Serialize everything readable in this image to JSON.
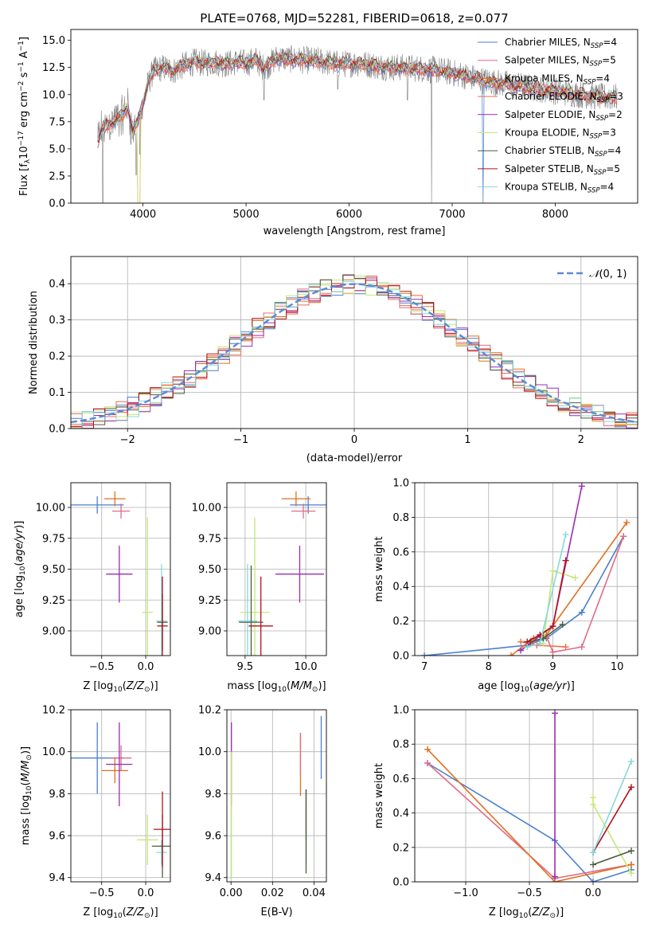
{
  "colors": {
    "Chabrier MILES": "#4a7fd0",
    "Salpeter MILES": "#e06b86",
    "Kroupa MILES": "#e07020",
    "Chabrier ELODIE": "#ed6f4a",
    "Salpeter ELODIE": "#9a2cb3",
    "Kroupa ELODIE": "#c8e67a",
    "Chabrier STELIB": "#4a5d3e",
    "Salpeter STELIB": "#b11218",
    "Kroupa STELIB": "#86d8dc"
  },
  "chart_data": [
    {
      "id": "spectrum",
      "type": "line",
      "title": "PLATE=0768, MJD=52281, FIBERID=0618, z=0.077",
      "xlabel": "wavelength [Angstrom, rest frame]",
      "ylabel": "Flux [fλ10⁻¹⁷ erg cm⁻² s⁻¹ A⁻¹]",
      "xlim": [
        3300,
        8800
      ],
      "ylim": [
        0,
        16
      ],
      "xticks": [
        4000,
        5000,
        6000,
        7000,
        8000
      ],
      "yticks": [
        0.0,
        2.5,
        5.0,
        7.5,
        10.0,
        12.5,
        15.0
      ],
      "data_color": "#808080",
      "continuum": [
        [
          3550,
          5.5
        ],
        [
          3600,
          6.8
        ],
        [
          3700,
          7.5
        ],
        [
          3800,
          8.0
        ],
        [
          3850,
          9.0
        ],
        [
          3900,
          6.5
        ],
        [
          3950,
          7.5
        ],
        [
          4000,
          9.2
        ],
        [
          4050,
          11.0
        ],
        [
          4100,
          12.2
        ],
        [
          4200,
          12.5
        ],
        [
          4300,
          12.2
        ],
        [
          4400,
          12.7
        ],
        [
          4500,
          13.0
        ],
        [
          4600,
          12.9
        ],
        [
          4700,
          13.0
        ],
        [
          4800,
          12.8
        ],
        [
          4900,
          13.0
        ],
        [
          5000,
          12.9
        ],
        [
          5100,
          13.2
        ],
        [
          5175,
          12.4
        ],
        [
          5300,
          13.4
        ],
        [
          5500,
          13.2
        ],
        [
          5700,
          13.1
        ],
        [
          5900,
          12.8
        ],
        [
          6100,
          12.9
        ],
        [
          6300,
          12.6
        ],
        [
          6500,
          12.5
        ],
        [
          6700,
          12.4
        ],
        [
          6900,
          12.2
        ],
        [
          7100,
          11.8
        ],
        [
          7300,
          11.3
        ],
        [
          7500,
          11.0
        ],
        [
          7800,
          10.6
        ],
        [
          8100,
          10.2
        ],
        [
          8400,
          9.8
        ],
        [
          8600,
          9.7
        ]
      ],
      "legend": [
        {
          "key": "Chabrier MILES",
          "text": "Chabrier MILES, N",
          "sub": "SSP",
          "suffix": "=4"
        },
        {
          "key": "Salpeter MILES",
          "text": "Salpeter MILES, N",
          "sub": "SSP",
          "suffix": "=5"
        },
        {
          "key": "Kroupa MILES",
          "text": "Kroupa MILES, N",
          "sub": "SSP",
          "suffix": "=4"
        },
        {
          "key": "Chabrier ELODIE",
          "text": "Chabrier ELODIE, N",
          "sub": "SSP",
          "suffix": "=3"
        },
        {
          "key": "Salpeter ELODIE",
          "text": "Salpeter ELODIE, N",
          "sub": "SSP",
          "suffix": "=2"
        },
        {
          "key": "Kroupa ELODIE",
          "text": "Kroupa ELODIE, N",
          "sub": "SSP",
          "suffix": "=3"
        },
        {
          "key": "Chabrier STELIB",
          "text": "Chabrier STELIB, N",
          "sub": "SSP",
          "suffix": "=4"
        },
        {
          "key": "Salpeter STELIB",
          "text": "Salpeter STELIB, N",
          "sub": "SSP",
          "suffix": "=5"
        },
        {
          "key": "Kroupa STELIB",
          "text": "Kroupa STELIB, N",
          "sub": "SSP",
          "suffix": "=4"
        }
      ]
    },
    {
      "id": "residuals",
      "type": "line",
      "xlabel": "(data-model)/error",
      "ylabel": "Normed distribution",
      "xlim": [
        -2.5,
        2.5
      ],
      "ylim": [
        0,
        0.475
      ],
      "xticks": [
        -2,
        -1,
        0,
        1,
        2
      ],
      "yticks": [
        0.0,
        0.1,
        0.2,
        0.3,
        0.4
      ],
      "grid": true,
      "legend_label": "N(0,1)",
      "gaussian_color": "#5b8bd6"
    },
    {
      "id": "age-vs-Z",
      "type": "scatter",
      "xlabel": "Z [log10(Z/Z⊙)]",
      "ylabel": "age [log10(age/yr)]",
      "xlim": [
        -0.85,
        0.28
      ],
      "ylim": [
        8.8,
        10.2
      ],
      "xticks": [
        -0.5,
        0.0
      ],
      "xticklabels": [
        "−0.5",
        "0.0"
      ],
      "yticks": [
        9.0,
        9.25,
        9.5,
        9.75,
        10.0
      ],
      "yticklabels": [
        "9.00",
        "9.25",
        "9.50",
        "9.75",
        "10.00"
      ],
      "points": [
        {
          "key": "Chabrier MILES",
          "x": -0.55,
          "y": 10.02,
          "xerr": 0.3,
          "yerr": 0.07
        },
        {
          "key": "Kroupa MILES",
          "x": -0.35,
          "y": 10.07,
          "xerr": 0.12,
          "yerr": 0.06
        },
        {
          "key": "Salpeter MILES",
          "x": -0.28,
          "y": 9.97,
          "xerr": 0.1,
          "yerr": 0.06
        },
        {
          "key": "Salpeter ELODIE",
          "x": -0.3,
          "y": 9.46,
          "xerr": 0.15,
          "yerr": 0.23
        },
        {
          "key": "Kroupa ELODIE",
          "x": 0.02,
          "y": 9.15,
          "xerr": 0.06,
          "yerr": 0.77
        },
        {
          "key": "Kroupa STELIB",
          "x": 0.18,
          "y": 9.08,
          "xerr": 0.06,
          "yerr": 0.46
        },
        {
          "key": "Chabrier STELIB",
          "x": 0.19,
          "y": 9.07,
          "xerr": 0.06,
          "yerr": 0.23
        },
        {
          "key": "Salpeter STELIB",
          "x": 0.19,
          "y": 9.04,
          "xerr": 0.06,
          "yerr": 0.4
        }
      ]
    },
    {
      "id": "age-vs-mass",
      "type": "scatter",
      "xlabel": "mass [log10(M/M⊙)]",
      "xlim": [
        9.35,
        10.17
      ],
      "ylim": [
        8.8,
        10.2
      ],
      "xticks": [
        9.5,
        10.0
      ],
      "xticklabels": [
        "9.5",
        "10.0"
      ],
      "yticks": [
        9.0,
        9.25,
        9.5,
        9.75,
        10.0
      ],
      "yticklabels": [
        "9.00",
        "9.25",
        "9.50",
        "9.75",
        "10.00"
      ],
      "points": [
        {
          "key": "Chabrier MILES",
          "x": 10.02,
          "y": 10.02,
          "xerr": 0.15,
          "yerr": 0.07
        },
        {
          "key": "Kroupa MILES",
          "x": 9.92,
          "y": 10.07,
          "xerr": 0.12,
          "yerr": 0.06
        },
        {
          "key": "Salpeter MILES",
          "x": 9.98,
          "y": 9.97,
          "xerr": 0.1,
          "yerr": 0.06
        },
        {
          "key": "Salpeter ELODIE",
          "x": 9.95,
          "y": 9.46,
          "xerr": 0.2,
          "yerr": 0.23
        },
        {
          "key": "Kroupa ELODIE",
          "x": 9.58,
          "y": 9.15,
          "xerr": 0.12,
          "yerr": 0.77
        },
        {
          "key": "Kroupa STELIB",
          "x": 9.52,
          "y": 9.08,
          "xerr": 0.08,
          "yerr": 0.46
        },
        {
          "key": "Chabrier STELIB",
          "x": 9.55,
          "y": 9.07,
          "xerr": 0.1,
          "yerr": 0.46
        },
        {
          "key": "Salpeter STELIB",
          "x": 9.63,
          "y": 9.04,
          "xerr": 0.1,
          "yerr": 0.4
        }
      ]
    },
    {
      "id": "mass-weight-vs-age",
      "type": "line",
      "xlabel": "age [log10(age/yr)]",
      "ylabel": "mass weight",
      "xlim": [
        6.85,
        10.32
      ],
      "ylim": [
        0,
        1
      ],
      "xticks": [
        7,
        8,
        9,
        10
      ],
      "yticks": [
        0.0,
        0.2,
        0.4,
        0.6,
        0.8,
        1.0
      ],
      "series": [
        {
          "key": "Chabrier MILES",
          "x": [
            7.0,
            8.6,
            8.9,
            9.45,
            10.1
          ],
          "y": [
            0.0,
            0.06,
            0.1,
            0.25,
            0.69
          ]
        },
        {
          "key": "Salpeter MILES",
          "x": [
            8.65,
            8.9,
            9.0,
            9.45,
            10.1
          ],
          "y": [
            0.07,
            0.11,
            0.02,
            0.05,
            0.69
          ]
        },
        {
          "key": "Kroupa MILES",
          "x": [
            8.35,
            8.7,
            8.9,
            10.15
          ],
          "y": [
            0.0,
            0.1,
            0.12,
            0.77
          ]
        },
        {
          "key": "Chabrier ELODIE",
          "x": [
            8.5,
            8.75,
            9.2
          ],
          "y": [
            0.08,
            0.06,
            0.05
          ]
        },
        {
          "key": "Salpeter ELODIE",
          "x": [
            8.5,
            9.0,
            9.45
          ],
          "y": [
            0.03,
            0.17,
            0.98
          ]
        },
        {
          "key": "Kroupa ELODIE",
          "x": [
            8.85,
            9.0,
            9.35
          ],
          "y": [
            0.07,
            0.49,
            0.45
          ]
        },
        {
          "key": "Chabrier STELIB",
          "x": [
            8.65,
            8.85,
            9.15
          ],
          "y": [
            0.08,
            0.1,
            0.18
          ]
        },
        {
          "key": "Salpeter STELIB",
          "x": [
            8.6,
            8.8,
            9.0,
            9.2
          ],
          "y": [
            0.08,
            0.12,
            0.17,
            0.55
          ]
        },
        {
          "key": "Kroupa STELIB",
          "x": [
            8.6,
            8.8,
            9.2
          ],
          "y": [
            0.05,
            0.07,
            0.7
          ]
        }
      ]
    },
    {
      "id": "mass-vs-Z",
      "type": "scatter",
      "xlabel": "Z [log10(Z/Z⊙)]",
      "ylabel": "mass [log10(M/M⊙)]",
      "xlim": [
        -0.85,
        0.28
      ],
      "ylim": [
        9.38,
        10.2
      ],
      "xticks": [
        -0.5,
        0.0
      ],
      "xticklabels": [
        "−0.5",
        "0.0"
      ],
      "yticks": [
        9.4,
        9.6,
        9.8,
        10.0,
        10.2
      ],
      "yticklabels": [
        "9.4",
        "9.6",
        "9.8",
        "10.0",
        "10.2"
      ],
      "points": [
        {
          "key": "Chabrier MILES",
          "x": -0.55,
          "y": 9.97,
          "xerr": 0.3,
          "yerr": 0.17
        },
        {
          "key": "Kroupa MILES",
          "x": -0.35,
          "y": 9.91,
          "xerr": 0.15,
          "yerr": 0.06
        },
        {
          "key": "Salpeter MILES",
          "x": -0.28,
          "y": 9.97,
          "xerr": 0.12,
          "yerr": 0.06
        },
        {
          "key": "Salpeter ELODIE",
          "x": -0.3,
          "y": 9.94,
          "xerr": 0.15,
          "yerr": 0.2
        },
        {
          "key": "Kroupa ELODIE",
          "x": 0.02,
          "y": 9.58,
          "xerr": 0.12,
          "yerr": 0.12
        },
        {
          "key": "Kroupa STELIB",
          "x": 0.18,
          "y": 9.52,
          "xerr": 0.06,
          "yerr": 0.06
        },
        {
          "key": "Chabrier STELIB",
          "x": 0.19,
          "y": 9.55,
          "xerr": 0.12,
          "yerr": 0.15
        },
        {
          "key": "Salpeter STELIB",
          "x": 0.19,
          "y": 9.63,
          "xerr": 0.1,
          "yerr": 0.18
        }
      ]
    },
    {
      "id": "mass-vs-EBV",
      "type": "scatter",
      "xlabel": "E(B-V)",
      "xlim": [
        -0.002,
        0.046
      ],
      "ylim": [
        9.38,
        10.2
      ],
      "xticks": [
        0.0,
        0.02,
        0.04
      ],
      "xticklabels": [
        "0.00",
        "0.02",
        "0.04"
      ],
      "yticks": [
        9.4,
        9.6,
        9.8,
        10.0,
        10.2
      ],
      "yticklabels": [
        "9.4",
        "9.6",
        "9.8",
        "10.0",
        "10.2"
      ],
      "points": [
        {
          "key": "Chabrier MILES",
          "x": 0.0435,
          "y": 10.02,
          "xerr": 0.0,
          "yerr": 0.15
        },
        {
          "key": "Kroupa MILES",
          "x": 0.0335,
          "y": 9.94,
          "xerr": 0.0,
          "yerr": 0.15
        },
        {
          "key": "Salpeter MILES",
          "x": 0.0335,
          "y": 9.99,
          "xerr": 0.0,
          "yerr": 0.1
        },
        {
          "key": "Salpeter ELODIE",
          "x": 0.0002,
          "y": 9.94,
          "xerr": 0.0,
          "yerr": 0.2
        },
        {
          "key": "Kroupa ELODIE",
          "x": 0.0002,
          "y": 9.7,
          "xerr": 0.0,
          "yerr": 0.3
        },
        {
          "key": "Salpeter STELIB",
          "x": 0.0362,
          "y": 9.7,
          "xerr": 0.0,
          "yerr": 0.12
        },
        {
          "key": "Kroupa STELIB",
          "x": 0.0362,
          "y": 9.6,
          "xerr": 0.0,
          "yerr": 0.14
        },
        {
          "key": "Chabrier STELIB",
          "x": 0.0362,
          "y": 9.62,
          "xerr": 0.0,
          "yerr": 0.2
        }
      ]
    },
    {
      "id": "mass-weight-vs-Z",
      "type": "line",
      "xlabel": "Z [log10(Z/Z⊙)]",
      "ylabel": "mass weight",
      "xlim": [
        -1.4,
        0.35
      ],
      "ylim": [
        0,
        1
      ],
      "xticks": [
        -1.0,
        -0.5,
        0.0
      ],
      "xticklabels": [
        "−1.0",
        "−0.5",
        "0.0"
      ],
      "yticks": [
        0.0,
        0.2,
        0.4,
        0.6,
        0.8,
        1.0
      ],
      "series": [
        {
          "key": "Chabrier MILES",
          "x": [
            -1.3,
            -0.3,
            0.0,
            0.3
          ],
          "y": [
            0.69,
            0.24,
            0.0,
            0.07
          ]
        },
        {
          "key": "Salpeter MILES",
          "x": [
            -1.3,
            -0.3,
            0.3
          ],
          "y": [
            0.69,
            0.02,
            0.1
          ]
        },
        {
          "key": "Kroupa MILES",
          "x": [
            -1.3,
            -0.3,
            0.3
          ],
          "y": [
            0.77,
            0.0,
            0.1
          ]
        },
        {
          "key": "Salpeter ELODIE",
          "x": [
            -0.3,
            -0.3
          ],
          "y": [
            0.98,
            0.03
          ]
        },
        {
          "key": "Kroupa ELODIE",
          "x": [
            0.0,
            0.0,
            0.3
          ],
          "y": [
            0.49,
            0.45,
            0.05
          ]
        },
        {
          "key": "Chabrier STELIB",
          "x": [
            0.0,
            0.3
          ],
          "y": [
            0.1,
            0.18
          ]
        },
        {
          "key": "Salpeter STELIB",
          "x": [
            0.0,
            0.3
          ],
          "y": [
            0.17,
            0.55
          ]
        },
        {
          "key": "Kroupa STELIB",
          "x": [
            0.0,
            0.3
          ],
          "y": [
            0.17,
            0.7
          ]
        }
      ]
    }
  ]
}
